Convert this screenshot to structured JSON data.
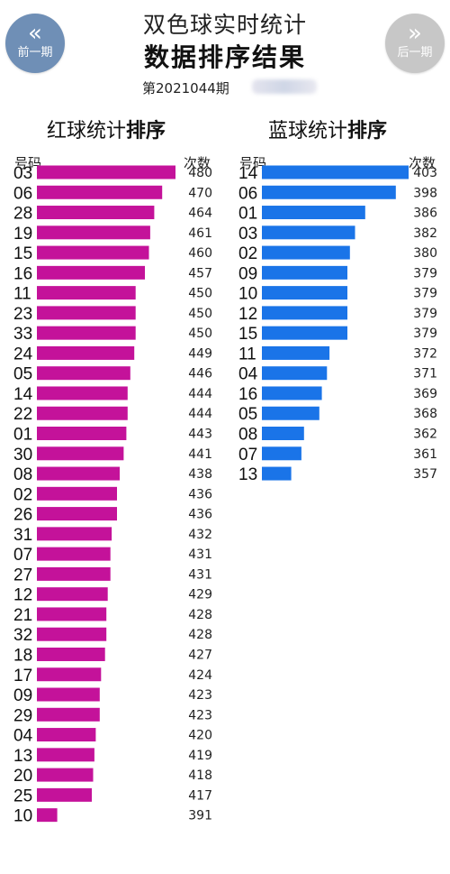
{
  "nav": {
    "prev": {
      "arrow": "«",
      "label": "前一期"
    },
    "next": {
      "arrow": "»",
      "label": "后一期"
    }
  },
  "header": {
    "title1": "双色球实时统计",
    "title2": "数据排序结果",
    "period": "第2021044期"
  },
  "colors": {
    "red_series": "#c4129a",
    "blue_series": "#1a74e8"
  },
  "chart_data": [
    {
      "type": "bar",
      "orientation": "horizontal",
      "title_plain": "红球统计",
      "title_bold": "排序",
      "col_label_left": "号码",
      "col_label_right": "次数",
      "categories": [
        "03",
        "06",
        "28",
        "19",
        "15",
        "16",
        "11",
        "23",
        "33",
        "24",
        "05",
        "14",
        "22",
        "01",
        "30",
        "08",
        "02",
        "26",
        "31",
        "07",
        "27",
        "12",
        "21",
        "32",
        "18",
        "17",
        "09",
        "29",
        "04",
        "13",
        "20",
        "25",
        "10"
      ],
      "values": [
        480,
        470,
        464,
        461,
        460,
        457,
        450,
        450,
        450,
        449,
        446,
        444,
        444,
        443,
        441,
        438,
        436,
        436,
        432,
        431,
        431,
        429,
        428,
        428,
        427,
        424,
        423,
        423,
        420,
        419,
        418,
        417,
        391
      ]
    },
    {
      "type": "bar",
      "orientation": "horizontal",
      "title_plain": "蓝球统计",
      "title_bold": "排序",
      "col_label_left": "号码",
      "col_label_right": "次数",
      "categories": [
        "14",
        "06",
        "01",
        "03",
        "02",
        "09",
        "10",
        "12",
        "15",
        "11",
        "04",
        "16",
        "05",
        "08",
        "07",
        "13"
      ],
      "values": [
        403,
        398,
        386,
        382,
        380,
        379,
        379,
        379,
        379,
        372,
        371,
        369,
        368,
        362,
        361,
        357
      ]
    }
  ]
}
